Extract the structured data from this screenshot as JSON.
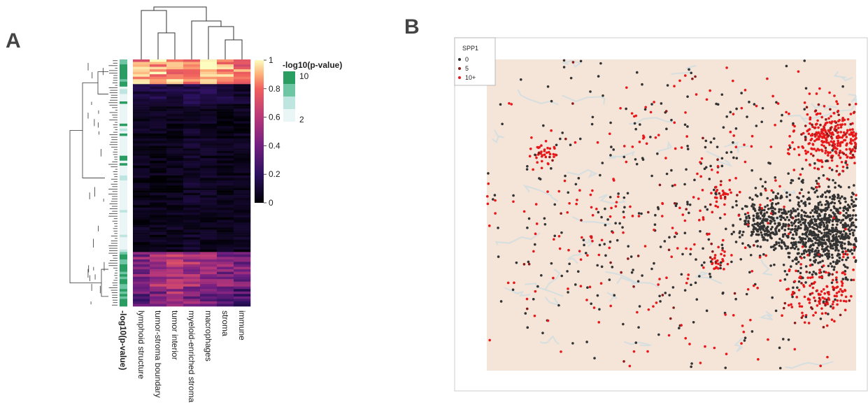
{
  "panels": {
    "a_label": "A",
    "b_label": "B"
  },
  "heatmap": {
    "columns": [
      "lymphoid structure",
      "tumor-stroma boundary",
      "tumor interior",
      "myeloid-enriched stroma",
      "macrophages",
      "stroma",
      "immune"
    ],
    "annotation_label": "-log10(p-value)",
    "colorbar": {
      "ticks": [
        "1",
        "0.8",
        "0.6",
        "0.4",
        "0.2",
        "0"
      ]
    },
    "pval_legend": {
      "title": "-log10(p-value)",
      "high": "10",
      "low": "2"
    },
    "colors": {
      "viridis_low": "#000004",
      "mid": "#b73779",
      "high": "#fcfdbf",
      "anno_high": "#2a9d63",
      "anno_low": "#eaf6f6"
    }
  },
  "chart_data": [
    {
      "type": "heatmap",
      "columns": [
        "lymphoid structure",
        "tumor-stroma boundary",
        "tumor interior",
        "myeloid-enriched stroma",
        "macrophages",
        "stroma",
        "immune"
      ],
      "value_range": [
        0,
        1
      ],
      "row_blocks": [
        {
          "rows": 10,
          "values": [
            0.85,
            0.9,
            0.88,
            0.85,
            0.92,
            0.85,
            0.8
          ]
        },
        {
          "rows": 8,
          "values": [
            0.12,
            0.15,
            0.13,
            0.15,
            0.18,
            0.12,
            0.1
          ]
        },
        {
          "rows": 60,
          "values": [
            0.05,
            0.05,
            0.05,
            0.08,
            0.06,
            0.05,
            0.05
          ]
        },
        {
          "rows": 14,
          "values": [
            0.45,
            0.55,
            0.6,
            0.55,
            0.5,
            0.45,
            0.4
          ]
        },
        {
          "rows": 8,
          "values": [
            0.35,
            0.45,
            0.55,
            0.45,
            0.4,
            0.35,
            0.3
          ]
        }
      ],
      "annotation": {
        "label": "-log10(p-value)",
        "range": [
          2,
          10
        ]
      }
    },
    {
      "type": "scatter",
      "legend_title": "SPP1",
      "legend_entries": [
        "0",
        "5",
        "10+"
      ],
      "legend_colors": [
        "#333333",
        "#8b1a1a",
        "#e8181a"
      ],
      "legend_position": "top-left",
      "x_range": [
        0,
        1
      ],
      "y_range": [
        0,
        1
      ],
      "clusters": [
        {
          "label": "0",
          "cx": 0.92,
          "cy": 0.45,
          "spread": 0.07,
          "n": 900
        },
        {
          "label": "0",
          "cx": 0.75,
          "cy": 0.48,
          "spread": 0.04,
          "n": 200
        },
        {
          "label": "10+",
          "cx": 0.94,
          "cy": 0.75,
          "spread": 0.05,
          "n": 350
        },
        {
          "label": "10+",
          "cx": 0.9,
          "cy": 0.25,
          "spread": 0.05,
          "n": 150
        },
        {
          "label": "10+",
          "cx": 0.16,
          "cy": 0.7,
          "spread": 0.02,
          "n": 40
        },
        {
          "label": "10+",
          "cx": 0.62,
          "cy": 0.35,
          "spread": 0.015,
          "n": 25
        },
        {
          "label": "10+",
          "cx": 0.64,
          "cy": 0.57,
          "spread": 0.02,
          "n": 30
        },
        {
          "label": "0",
          "cx": 0.5,
          "cy": 0.5,
          "spread": 0.3,
          "n": 400
        },
        {
          "label": "10+",
          "cx": 0.5,
          "cy": 0.5,
          "spread": 0.3,
          "n": 350
        }
      ]
    }
  ]
}
